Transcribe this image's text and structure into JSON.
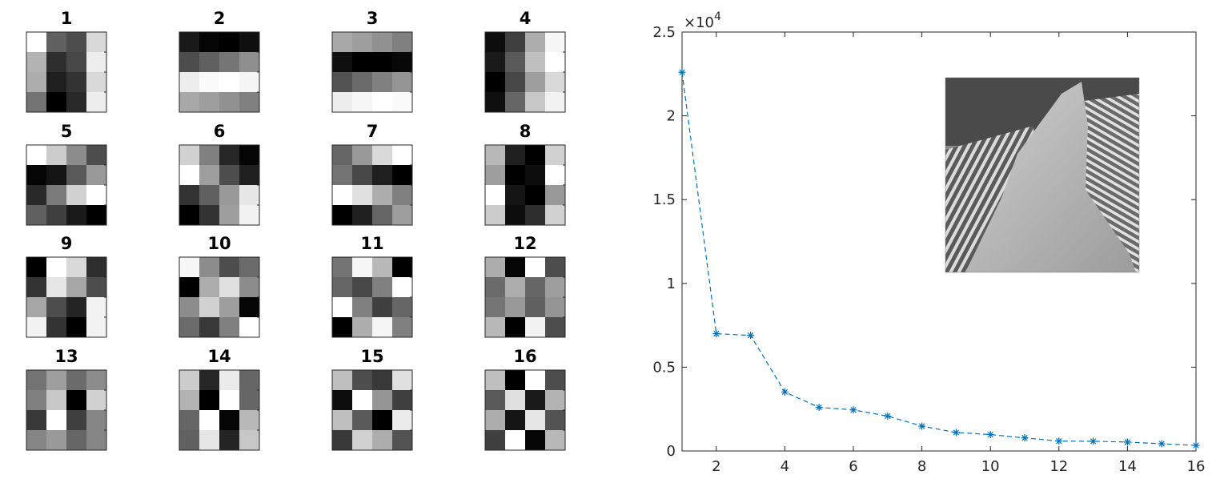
{
  "chart_data": [
    {
      "type": "heatmap",
      "colormap": "gray",
      "panels": [
        {
          "title": "1",
          "values": [
            [
              1.0,
              0.38,
              0.3,
              0.85
            ],
            [
              0.7,
              0.18,
              0.28,
              0.93
            ],
            [
              0.68,
              0.12,
              0.2,
              0.85
            ],
            [
              0.45,
              0.0,
              0.16,
              0.93
            ]
          ]
        },
        {
          "title": "2",
          "values": [
            [
              0.1,
              0.02,
              0.0,
              0.06
            ],
            [
              0.3,
              0.38,
              0.46,
              0.56
            ],
            [
              0.93,
              0.98,
              1.0,
              0.96
            ],
            [
              0.66,
              0.62,
              0.57,
              0.5
            ]
          ]
        },
        {
          "title": "3",
          "values": [
            [
              0.66,
              0.62,
              0.57,
              0.5
            ],
            [
              0.06,
              0.0,
              0.0,
              0.03
            ],
            [
              0.32,
              0.42,
              0.5,
              0.58
            ],
            [
              0.93,
              0.97,
              1.0,
              0.98
            ]
          ]
        },
        {
          "title": "4",
          "values": [
            [
              0.05,
              0.25,
              0.68,
              0.97
            ],
            [
              0.1,
              0.35,
              0.75,
              1.0
            ],
            [
              0.0,
              0.28,
              0.62,
              0.85
            ],
            [
              0.06,
              0.4,
              0.78,
              0.95
            ]
          ]
        },
        {
          "title": "5",
          "values": [
            [
              1.0,
              0.8,
              0.55,
              0.3
            ],
            [
              0.02,
              0.08,
              0.35,
              0.6
            ],
            [
              0.16,
              0.48,
              0.82,
              1.0
            ],
            [
              0.38,
              0.25,
              0.1,
              0.0
            ]
          ]
        },
        {
          "title": "6",
          "values": [
            [
              0.82,
              0.5,
              0.15,
              0.02
            ],
            [
              1.0,
              0.62,
              0.3,
              0.12
            ],
            [
              0.2,
              0.38,
              0.6,
              0.9
            ],
            [
              0.0,
              0.2,
              0.62,
              0.95
            ]
          ]
        },
        {
          "title": "7",
          "values": [
            [
              0.4,
              0.6,
              0.85,
              1.0
            ],
            [
              0.45,
              0.28,
              0.12,
              0.0
            ],
            [
              1.0,
              0.88,
              0.68,
              0.5
            ],
            [
              0.0,
              0.12,
              0.4,
              0.62
            ]
          ]
        },
        {
          "title": "8",
          "values": [
            [
              0.72,
              0.12,
              0.0,
              0.82
            ],
            [
              0.62,
              0.0,
              0.05,
              1.0
            ],
            [
              1.0,
              0.08,
              0.0,
              0.6
            ],
            [
              0.8,
              0.05,
              0.18,
              0.82
            ]
          ]
        },
        {
          "title": "9",
          "values": [
            [
              0.0,
              1.0,
              0.85,
              0.18
            ],
            [
              0.2,
              0.9,
              0.65,
              0.3
            ],
            [
              0.65,
              0.3,
              0.14,
              0.95
            ],
            [
              0.95,
              0.2,
              0.0,
              0.95
            ]
          ]
        },
        {
          "title": "10",
          "values": [
            [
              0.97,
              0.55,
              0.3,
              0.42
            ],
            [
              0.0,
              0.68,
              0.88,
              0.55
            ],
            [
              0.55,
              0.82,
              0.62,
              0.02
            ],
            [
              0.42,
              0.22,
              0.5,
              1.0
            ]
          ]
        },
        {
          "title": "11",
          "values": [
            [
              0.45,
              0.97,
              0.72,
              0.0
            ],
            [
              0.4,
              0.28,
              0.5,
              1.0
            ],
            [
              1.0,
              0.5,
              0.25,
              0.4
            ],
            [
              0.0,
              0.68,
              0.96,
              0.5
            ]
          ]
        },
        {
          "title": "12",
          "values": [
            [
              0.68,
              0.02,
              1.0,
              0.3
            ],
            [
              0.42,
              0.68,
              0.4,
              0.62
            ],
            [
              0.46,
              0.6,
              0.38,
              0.58
            ],
            [
              0.72,
              0.0,
              0.95,
              0.3
            ]
          ]
        },
        {
          "title": "13",
          "values": [
            [
              0.45,
              0.62,
              0.42,
              0.55
            ],
            [
              0.5,
              0.78,
              0.0,
              0.82
            ],
            [
              0.22,
              1.0,
              0.25,
              0.52
            ],
            [
              0.52,
              0.6,
              0.4,
              0.52
            ]
          ]
        },
        {
          "title": "14",
          "values": [
            [
              0.8,
              0.15,
              0.92,
              0.4
            ],
            [
              0.7,
              0.0,
              1.0,
              0.4
            ],
            [
              0.4,
              1.0,
              0.02,
              0.72
            ],
            [
              0.38,
              0.9,
              0.14,
              0.78
            ]
          ]
        },
        {
          "title": "15",
          "values": [
            [
              0.75,
              0.3,
              0.22,
              0.88
            ],
            [
              0.05,
              1.0,
              0.58,
              0.25
            ],
            [
              0.75,
              0.35,
              0.0,
              0.92
            ],
            [
              0.22,
              0.82,
              0.68,
              0.32
            ]
          ]
        },
        {
          "title": "16",
          "values": [
            [
              0.75,
              0.0,
              1.0,
              0.3
            ],
            [
              0.35,
              0.88,
              0.1,
              0.7
            ],
            [
              0.68,
              0.08,
              0.9,
              0.32
            ],
            [
              0.25,
              1.0,
              0.02,
              0.72
            ]
          ]
        }
      ]
    },
    {
      "type": "line",
      "x": [
        1,
        2,
        3,
        4,
        5,
        6,
        7,
        8,
        9,
        10,
        11,
        12,
        13,
        14,
        15,
        16
      ],
      "series": [
        {
          "values": [
            22600,
            7000,
            6900,
            3520,
            2600,
            2450,
            2080,
            1480,
            1100,
            980,
            780,
            590,
            580,
            530,
            430,
            330
          ],
          "color": "#0072BD",
          "linestyle": "dashed",
          "marker": "asterisk"
        }
      ],
      "xlim": [
        1,
        16
      ],
      "ylim": [
        0,
        25000
      ],
      "xticks": [
        2,
        4,
        6,
        8,
        10,
        12,
        14,
        16
      ],
      "yticks": [
        0,
        0.5,
        1,
        1.5,
        2,
        2.5
      ],
      "ytick_labels": [
        "0",
        "0.5",
        "1",
        "1.5",
        "2",
        "2.5"
      ],
      "exponent_label": "×10",
      "exponent_power": "4",
      "inset": "grayscale photo of a hand against striped fabric"
    }
  ]
}
